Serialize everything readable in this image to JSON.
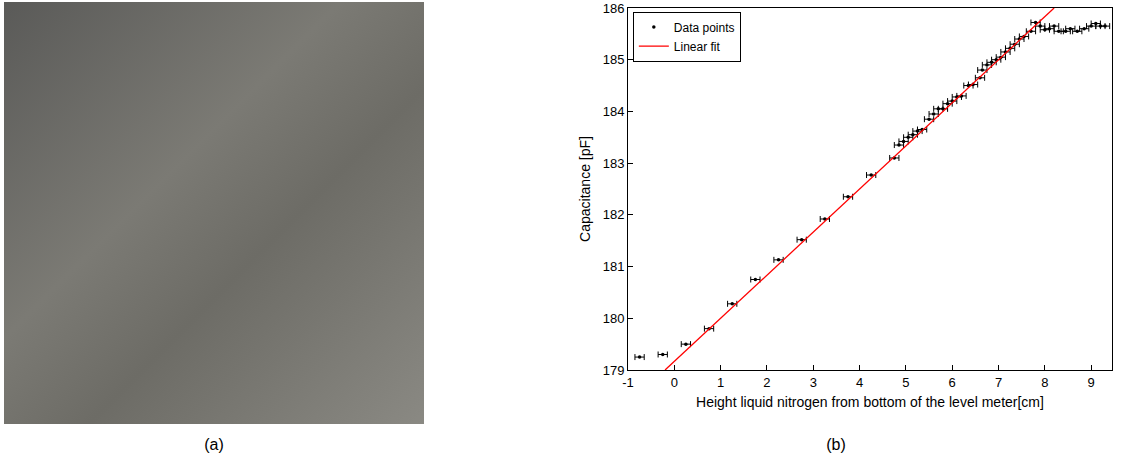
{
  "panel_labels": [
    "(a)",
    "(b)"
  ],
  "chart_data": {
    "type": "scatter",
    "x_label": "Height liquid nitrogen from bottom of the level meter[cm]",
    "y_label": "Capacitance [pF]",
    "xlim": [
      -1,
      9.45
    ],
    "xticks": [
      -1,
      0,
      1,
      2,
      3,
      4,
      5,
      6,
      7,
      8,
      9
    ],
    "ylim": [
      179,
      186
    ],
    "yticks": [
      179,
      180,
      181,
      182,
      183,
      184,
      185,
      186
    ],
    "grid": false,
    "legend": "upper left",
    "series": [
      {
        "name": "Data points",
        "type": "scatter",
        "color": "#000000",
        "marker": "circle",
        "x": [
          -0.75,
          -0.25,
          0.25,
          0.75,
          1.25,
          1.75,
          2.25,
          2.75,
          3.25,
          3.75,
          4.25,
          4.75,
          4.85,
          4.95,
          5.05,
          5.15,
          5.25,
          5.35,
          5.5,
          5.6,
          5.7,
          5.8,
          5.9,
          6.0,
          6.1,
          6.2,
          6.35,
          6.45,
          6.6,
          6.65,
          6.75,
          6.85,
          6.95,
          7.05,
          7.15,
          7.25,
          7.35,
          7.45,
          7.55,
          7.7,
          7.8,
          7.9,
          8.0,
          8.1,
          8.2,
          8.3,
          8.45,
          8.55,
          8.7,
          8.85,
          9.0,
          9.1,
          9.2,
          9.3
        ],
        "values": [
          179.25,
          179.3,
          179.5,
          179.8,
          180.28,
          180.75,
          181.13,
          181.52,
          181.92,
          182.35,
          182.77,
          183.1,
          183.35,
          183.42,
          183.5,
          183.55,
          183.62,
          183.65,
          183.85,
          183.95,
          184.05,
          184.05,
          184.15,
          184.2,
          184.28,
          184.3,
          184.5,
          184.52,
          184.65,
          184.8,
          184.9,
          184.95,
          185.0,
          185.05,
          185.15,
          185.22,
          185.3,
          185.4,
          185.45,
          185.55,
          185.72,
          185.65,
          185.58,
          185.6,
          185.65,
          185.55,
          185.55,
          185.6,
          185.55,
          185.6,
          185.65,
          185.7,
          185.65,
          185.65
        ],
        "x_error": [
          0.1,
          0.1,
          0.1,
          0.1,
          0.1,
          0.1,
          0.1,
          0.1,
          0.1,
          0.1,
          0.1,
          0.1,
          0.1,
          0.1,
          0.1,
          0.1,
          0.1,
          0.1,
          0.1,
          0.1,
          0.1,
          0.1,
          0.1,
          0.1,
          0.1,
          0.1,
          0.1,
          0.1,
          0.1,
          0.1,
          0.1,
          0.1,
          0.1,
          0.1,
          0.1,
          0.1,
          0.1,
          0.1,
          0.1,
          0.1,
          0.1,
          0.1,
          0.1,
          0.1,
          0.1,
          0.1,
          0.1,
          0.1,
          0.1,
          0.1,
          0.1,
          0.1,
          0.1,
          0.1
        ]
      },
      {
        "name": "Linear fit",
        "type": "line",
        "color": "#ff0000",
        "line_style": "solid",
        "x": [
          -0.2,
          8.2
        ],
        "values": [
          179,
          186
        ]
      }
    ]
  }
}
